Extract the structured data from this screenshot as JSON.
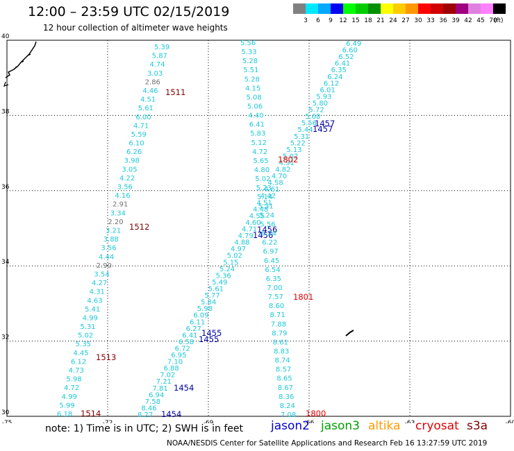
{
  "header": {
    "title": "12:00 – 23:59 UTC 02/15/2019",
    "subtitle": "12 hour collection of altimeter wave heights"
  },
  "colorbar": {
    "labels": [
      "3",
      "6",
      "9",
      "12",
      "15",
      "18",
      "21",
      "24",
      "27",
      "30",
      "33",
      "36",
      "39",
      "42",
      "45",
      "70",
      "(ft)"
    ],
    "colors": [
      "#808080",
      "#00e8ff",
      "#00a8ff",
      "#0000f0",
      "#00ff00",
      "#00cc00",
      "#009000",
      "#ffff00",
      "#ffcc00",
      "#ff9900",
      "#ff0000",
      "#d00000",
      "#a00000",
      "#a00080",
      "#e080e0",
      "#ff80ff",
      "#000000"
    ]
  },
  "map": {
    "lon_range": [
      -75,
      -60
    ],
    "lat_range": [
      30,
      40
    ],
    "lon_ticks": [
      "-75",
      "-72",
      "-69",
      "-66",
      "-63",
      "-60"
    ],
    "lat_ticks": [
      "30",
      "32",
      "34",
      "36",
      "38",
      "40"
    ],
    "tracks": [
      {
        "labels": [
          "1514",
          "1513",
          "1512",
          "1511"
        ],
        "label_color": "#800000",
        "values": [
          "6.18",
          "5.99",
          "4.99",
          "4.72",
          "5.98",
          "4.73",
          "6.12",
          "4.45",
          "5.35",
          "5.02",
          "5.31",
          "4.99",
          "5.41",
          "4.63",
          "4.31",
          "4.27",
          "3.54",
          "2.90",
          "4.44",
          "3.56",
          "3.88",
          "3.21",
          "2.20",
          "3.34",
          "2.91",
          "4.16",
          "3.56",
          "4.22",
          "3.05",
          "3.98",
          "6.26",
          "6.10",
          "5.59",
          "4.71",
          "6.00",
          "5.61",
          "4.51",
          "4.46",
          "2.86",
          "3.03",
          "4.74",
          "5.87",
          "5.39"
        ]
      },
      {
        "labels": [
          "1454",
          "1454",
          "1455",
          "1455",
          "1456",
          "1456",
          "1457",
          "1457"
        ],
        "label_color": "#0000a0",
        "values": [
          "8.27",
          "8.46",
          "7.58",
          "6.94",
          "7.81",
          "7.21",
          "7.02",
          "6.88",
          "7.10",
          "6.95",
          "6.72",
          "6.58",
          "6.41",
          "6.27",
          "6.11",
          "6.09",
          "5.98",
          "5.84",
          "5.77",
          "5.61",
          "5.49",
          "5.36",
          "5.24",
          "5.15",
          "5.02",
          "4.97",
          "4.88",
          "4.79",
          "4.71",
          "4.60",
          "4.55",
          "4.48",
          "4.51",
          "4.42",
          "4.61",
          "4.58",
          "4.70",
          "4.82",
          "4.91",
          "5.02",
          "5.13",
          "5.22",
          "5.31",
          "5.44",
          "5.56",
          "5.68",
          "5.72",
          "5.80",
          "5.93",
          "6.01",
          "6.12",
          "6.24",
          "6.35",
          "6.41",
          "6.52",
          "6.60",
          "6.49"
        ]
      },
      {
        "labels": [
          "1800",
          "1801",
          "1802"
        ],
        "label_color": "#e00000",
        "values": [
          "7.08",
          "8.24",
          "8.36",
          "8.67",
          "8.65",
          "8.57",
          "8.74",
          "8.83",
          "8.61",
          "8.79",
          "7.88",
          "8.71",
          "8.60",
          "7.57",
          "7.00",
          "6.35",
          "6.54",
          "6.45",
          "6.97",
          "6.22",
          "6.24",
          "5.56",
          "5.24",
          "5.31",
          "5.14",
          "5.23",
          "5.02",
          "4.80",
          "5.65",
          "4.72",
          "5.12",
          "5.83",
          "6.41",
          "4.40",
          "5.06",
          "5.08",
          "4.15",
          "5.28",
          "5.51",
          "5.28",
          "5.33",
          "5.56"
        ]
      }
    ]
  },
  "footer": {
    "note": "note:  1) Time is in UTC;  2) SWH is in feet",
    "satellites": [
      {
        "name": "jason2",
        "color": "#0000d0"
      },
      {
        "name": "jason3",
        "color": "#00a000"
      },
      {
        "name": "altika",
        "color": "#ff9900"
      },
      {
        "name": "cryosat",
        "color": "#e00000"
      },
      {
        "name": "s3a",
        "color": "#800000"
      }
    ],
    "credit": "NOAA/NESDIS Center for Satellite Applications and Research    Feb 16 13:27:59 UTC 2019"
  }
}
